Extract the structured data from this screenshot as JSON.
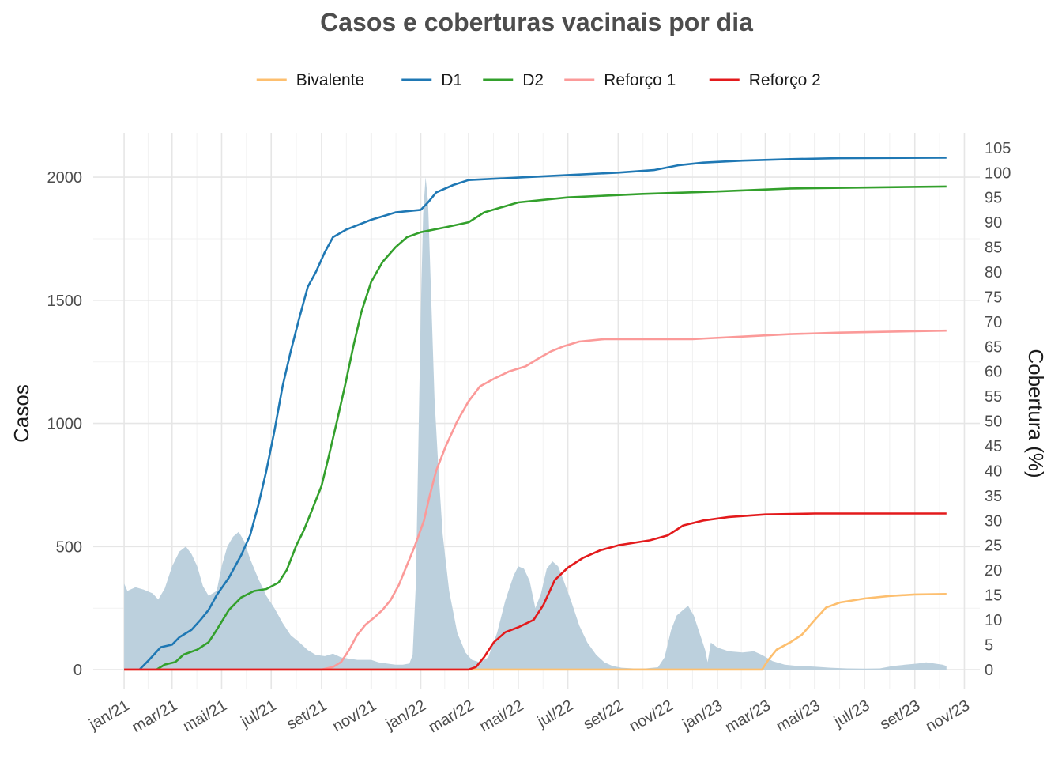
{
  "chart_data": {
    "type": "line",
    "title": "Casos e coberturas vacinais por dia",
    "ylabel": "Casos",
    "y2label": "Cobertura (%)",
    "legend_position": "top",
    "grid": true,
    "ylim": [
      -80,
      2180
    ],
    "y2lim": [
      -4,
      108
    ],
    "xlim": [
      "2020-11-24",
      "2023-11-20"
    ],
    "y_ticks": [
      0,
      500,
      1000,
      1500,
      2000
    ],
    "y2_ticks": [
      0,
      5,
      10,
      15,
      20,
      25,
      30,
      35,
      40,
      45,
      50,
      55,
      60,
      65,
      70,
      75,
      80,
      85,
      90,
      95,
      100,
      105
    ],
    "x_ticks": [
      {
        "date": "2021-01-01",
        "label": "jan/21"
      },
      {
        "date": "2021-03-01",
        "label": "mar/21"
      },
      {
        "date": "2021-05-01",
        "label": "mai/21"
      },
      {
        "date": "2021-07-01",
        "label": "jul/21"
      },
      {
        "date": "2021-09-01",
        "label": "set/21"
      },
      {
        "date": "2021-11-01",
        "label": "nov/21"
      },
      {
        "date": "2022-01-01",
        "label": "jan/22"
      },
      {
        "date": "2022-03-01",
        "label": "mar/22"
      },
      {
        "date": "2022-05-01",
        "label": "mai/22"
      },
      {
        "date": "2022-07-01",
        "label": "jul/22"
      },
      {
        "date": "2022-09-01",
        "label": "set/22"
      },
      {
        "date": "2022-11-01",
        "label": "nov/22"
      },
      {
        "date": "2023-01-01",
        "label": "jan/23"
      },
      {
        "date": "2023-03-01",
        "label": "mar/23"
      },
      {
        "date": "2023-05-01",
        "label": "mai/23"
      },
      {
        "date": "2023-07-01",
        "label": "jul/23"
      },
      {
        "date": "2023-09-01",
        "label": "set/23"
      },
      {
        "date": "2023-11-01",
        "label": "nov/23"
      }
    ],
    "cases": {
      "color": "#bcd0dd",
      "axis": "left",
      "points": [
        [
          "2021-01-01",
          350
        ],
        [
          "2021-01-05",
          320
        ],
        [
          "2021-01-15",
          335
        ],
        [
          "2021-01-25",
          325
        ],
        [
          "2021-02-05",
          310
        ],
        [
          "2021-02-12",
          285
        ],
        [
          "2021-02-20",
          330
        ],
        [
          "2021-03-01",
          420
        ],
        [
          "2021-03-10",
          480
        ],
        [
          "2021-03-18",
          500
        ],
        [
          "2021-03-25",
          470
        ],
        [
          "2021-04-01",
          420
        ],
        [
          "2021-04-08",
          340
        ],
        [
          "2021-04-15",
          300
        ],
        [
          "2021-04-25",
          320
        ],
        [
          "2021-05-01",
          420
        ],
        [
          "2021-05-08",
          500
        ],
        [
          "2021-05-15",
          540
        ],
        [
          "2021-05-22",
          560
        ],
        [
          "2021-05-29",
          520
        ],
        [
          "2021-06-05",
          450
        ],
        [
          "2021-06-15",
          370
        ],
        [
          "2021-06-25",
          300
        ],
        [
          "2021-07-05",
          250
        ],
        [
          "2021-07-15",
          190
        ],
        [
          "2021-07-25",
          140
        ],
        [
          "2021-08-05",
          110
        ],
        [
          "2021-08-15",
          80
        ],
        [
          "2021-08-25",
          60
        ],
        [
          "2021-09-05",
          55
        ],
        [
          "2021-09-15",
          65
        ],
        [
          "2021-09-25",
          50
        ],
        [
          "2021-10-05",
          45
        ],
        [
          "2021-10-15",
          40
        ],
        [
          "2021-11-01",
          40
        ],
        [
          "2021-11-10",
          30
        ],
        [
          "2021-11-20",
          25
        ],
        [
          "2021-12-01",
          20
        ],
        [
          "2021-12-10",
          20
        ],
        [
          "2021-12-18",
          25
        ],
        [
          "2021-12-22",
          60
        ],
        [
          "2021-12-26",
          350
        ],
        [
          "2021-12-29",
          900
        ],
        [
          "2022-01-01",
          1450
        ],
        [
          "2022-01-04",
          1850
        ],
        [
          "2022-01-07",
          2000
        ],
        [
          "2022-01-10",
          1900
        ],
        [
          "2022-01-14",
          1500
        ],
        [
          "2022-01-18",
          1100
        ],
        [
          "2022-01-23",
          800
        ],
        [
          "2022-01-28",
          550
        ],
        [
          "2022-02-05",
          320
        ],
        [
          "2022-02-15",
          150
        ],
        [
          "2022-02-25",
          70
        ],
        [
          "2022-03-05",
          40
        ],
        [
          "2022-03-15",
          30
        ],
        [
          "2022-03-25",
          50
        ],
        [
          "2022-04-05",
          150
        ],
        [
          "2022-04-15",
          280
        ],
        [
          "2022-04-25",
          380
        ],
        [
          "2022-05-01",
          420
        ],
        [
          "2022-05-08",
          410
        ],
        [
          "2022-05-15",
          360
        ],
        [
          "2022-05-22",
          250
        ],
        [
          "2022-05-29",
          310
        ],
        [
          "2022-06-05",
          410
        ],
        [
          "2022-06-12",
          440
        ],
        [
          "2022-06-19",
          420
        ],
        [
          "2022-06-26",
          360
        ],
        [
          "2022-07-05",
          280
        ],
        [
          "2022-07-15",
          180
        ],
        [
          "2022-07-25",
          110
        ],
        [
          "2022-08-05",
          60
        ],
        [
          "2022-08-15",
          30
        ],
        [
          "2022-08-25",
          15
        ],
        [
          "2022-09-05",
          8
        ],
        [
          "2022-09-20",
          5
        ],
        [
          "2022-10-05",
          5
        ],
        [
          "2022-10-20",
          10
        ],
        [
          "2022-10-28",
          50
        ],
        [
          "2022-11-05",
          160
        ],
        [
          "2022-11-12",
          220
        ],
        [
          "2022-11-19",
          240
        ],
        [
          "2022-11-26",
          260
        ],
        [
          "2022-12-03",
          220
        ],
        [
          "2022-12-10",
          150
        ],
        [
          "2022-12-17",
          80
        ],
        [
          "2022-12-20",
          30
        ],
        [
          "2022-12-24",
          110
        ],
        [
          "2023-01-01",
          90
        ],
        [
          "2023-01-15",
          75
        ],
        [
          "2023-02-01",
          70
        ],
        [
          "2023-02-15",
          75
        ],
        [
          "2023-02-25",
          60
        ],
        [
          "2023-03-10",
          35
        ],
        [
          "2023-03-25",
          20
        ],
        [
          "2023-04-10",
          15
        ],
        [
          "2023-05-01",
          12
        ],
        [
          "2023-05-20",
          8
        ],
        [
          "2023-06-10",
          5
        ],
        [
          "2023-07-01",
          4
        ],
        [
          "2023-07-20",
          5
        ],
        [
          "2023-08-05",
          15
        ],
        [
          "2023-08-20",
          20
        ],
        [
          "2023-09-05",
          25
        ],
        [
          "2023-09-15",
          30
        ],
        [
          "2023-09-25",
          25
        ],
        [
          "2023-10-05",
          20
        ],
        [
          "2023-10-10",
          15
        ]
      ]
    },
    "series": [
      {
        "name": "Bivalente",
        "color": "#fdbf6f",
        "axis": "right",
        "points": [
          [
            "2021-01-01",
            0
          ],
          [
            "2023-02-25",
            0
          ],
          [
            "2023-03-05",
            2
          ],
          [
            "2023-03-15",
            4
          ],
          [
            "2023-04-01",
            5.5
          ],
          [
            "2023-04-15",
            7
          ],
          [
            "2023-05-01",
            10
          ],
          [
            "2023-05-15",
            12.5
          ],
          [
            "2023-06-01",
            13.5
          ],
          [
            "2023-07-01",
            14.3
          ],
          [
            "2023-08-01",
            14.8
          ],
          [
            "2023-09-01",
            15.1
          ],
          [
            "2023-10-10",
            15.2
          ]
        ]
      },
      {
        "name": "D1",
        "color": "#1f78b4",
        "axis": "right",
        "points": [
          [
            "2021-01-20",
            0
          ],
          [
            "2021-02-01",
            2
          ],
          [
            "2021-02-15",
            4.5
          ],
          [
            "2021-03-01",
            5
          ],
          [
            "2021-03-10",
            6.5
          ],
          [
            "2021-03-25",
            8
          ],
          [
            "2021-04-05",
            10
          ],
          [
            "2021-04-15",
            12
          ],
          [
            "2021-04-25",
            15
          ],
          [
            "2021-05-10",
            18.5
          ],
          [
            "2021-05-25",
            23
          ],
          [
            "2021-06-05",
            27
          ],
          [
            "2021-06-15",
            33
          ],
          [
            "2021-06-25",
            40
          ],
          [
            "2021-07-05",
            48
          ],
          [
            "2021-07-15",
            57
          ],
          [
            "2021-07-25",
            64
          ],
          [
            "2021-08-05",
            71
          ],
          [
            "2021-08-15",
            77
          ],
          [
            "2021-08-25",
            80
          ],
          [
            "2021-09-05",
            84
          ],
          [
            "2021-09-15",
            87
          ],
          [
            "2021-10-01",
            88.5
          ],
          [
            "2021-11-01",
            90.5
          ],
          [
            "2021-12-01",
            92
          ],
          [
            "2022-01-01",
            92.5
          ],
          [
            "2022-01-10",
            94
          ],
          [
            "2022-01-20",
            96
          ],
          [
            "2022-02-10",
            97.5
          ],
          [
            "2022-03-01",
            98.5
          ],
          [
            "2022-05-01",
            99
          ],
          [
            "2022-07-01",
            99.5
          ],
          [
            "2022-09-01",
            100
          ],
          [
            "2022-10-15",
            100.5
          ],
          [
            "2022-11-15",
            101.5
          ],
          [
            "2022-12-15",
            102
          ],
          [
            "2023-02-01",
            102.4
          ],
          [
            "2023-04-01",
            102.7
          ],
          [
            "2023-06-01",
            102.9
          ],
          [
            "2023-10-10",
            103
          ]
        ]
      },
      {
        "name": "D2",
        "color": "#33a02c",
        "axis": "right",
        "points": [
          [
            "2021-02-10",
            0
          ],
          [
            "2021-02-20",
            1
          ],
          [
            "2021-03-05",
            1.5
          ],
          [
            "2021-03-15",
            3
          ],
          [
            "2021-04-01",
            4
          ],
          [
            "2021-04-15",
            5.5
          ],
          [
            "2021-04-25",
            8
          ],
          [
            "2021-05-10",
            12
          ],
          [
            "2021-05-25",
            14.5
          ],
          [
            "2021-06-10",
            15.8
          ],
          [
            "2021-06-25",
            16.2
          ],
          [
            "2021-07-10",
            17.5
          ],
          [
            "2021-07-20",
            20
          ],
          [
            "2021-08-01",
            25
          ],
          [
            "2021-08-10",
            28
          ],
          [
            "2021-08-20",
            32
          ],
          [
            "2021-09-01",
            37
          ],
          [
            "2021-09-10",
            43
          ],
          [
            "2021-09-20",
            50
          ],
          [
            "2021-10-01",
            58
          ],
          [
            "2021-10-10",
            65
          ],
          [
            "2021-10-20",
            72
          ],
          [
            "2021-11-01",
            78
          ],
          [
            "2021-11-15",
            82
          ],
          [
            "2021-12-01",
            85
          ],
          [
            "2021-12-15,",
            87
          ],
          [
            "2022-01-01",
            88
          ],
          [
            "2022-02-01",
            89
          ],
          [
            "2022-03-01",
            90
          ],
          [
            "2022-03-20",
            92
          ],
          [
            "2022-04-10",
            93
          ],
          [
            "2022-05-01",
            94
          ],
          [
            "2022-07-01",
            95
          ],
          [
            "2022-10-01",
            95.7
          ],
          [
            "2023-01-01",
            96.2
          ],
          [
            "2023-04-01",
            96.8
          ],
          [
            "2023-10-10",
            97.2
          ]
        ]
      },
      {
        "name": "Reforço 1",
        "color": "#fb9a99",
        "axis": "right",
        "points": [
          [
            "2021-01-01",
            0
          ],
          [
            "2021-09-01",
            0
          ],
          [
            "2021-09-15",
            0.5
          ],
          [
            "2021-09-25",
            1.5
          ],
          [
            "2021-10-05",
            4
          ],
          [
            "2021-10-15",
            7
          ],
          [
            "2021-10-25",
            9
          ],
          [
            "2021-11-05",
            10.5
          ],
          [
            "2021-11-15",
            12
          ],
          [
            "2021-11-25",
            14
          ],
          [
            "2021-12-05",
            17
          ],
          [
            "2021-12-15",
            21
          ],
          [
            "2021-12-25",
            25
          ],
          [
            "2022-01-05",
            30
          ],
          [
            "2022-01-12",
            35
          ],
          [
            "2022-01-20",
            40
          ],
          [
            "2022-02-01",
            45
          ],
          [
            "2022-02-15",
            50
          ],
          [
            "2022-03-01",
            54
          ],
          [
            "2022-03-15",
            57
          ],
          [
            "2022-04-01",
            58.5
          ],
          [
            "2022-04-20",
            60
          ],
          [
            "2022-05-10",
            61
          ],
          [
            "2022-05-25",
            62.5
          ],
          [
            "2022-06-10",
            64
          ],
          [
            "2022-06-25",
            65
          ],
          [
            "2022-07-15",
            66
          ],
          [
            "2022-08-15",
            66.5
          ],
          [
            "2022-12-01",
            66.5
          ],
          [
            "2023-02-01",
            67
          ],
          [
            "2023-04-01",
            67.5
          ],
          [
            "2023-06-01",
            67.8
          ],
          [
            "2023-10-10",
            68.2
          ]
        ]
      },
      {
        "name": "Reforço 2",
        "color": "#e31a1c",
        "axis": "right",
        "points": [
          [
            "2021-01-01",
            0
          ],
          [
            "2022-03-01",
            0
          ],
          [
            "2022-03-10",
            0.5
          ],
          [
            "2022-03-20",
            2.5
          ],
          [
            "2022-04-01",
            5.5
          ],
          [
            "2022-04-15",
            7.5
          ],
          [
            "2022-05-01",
            8.5
          ],
          [
            "2022-05-20",
            10
          ],
          [
            "2022-06-01",
            13
          ],
          [
            "2022-06-15",
            18
          ],
          [
            "2022-07-01",
            20.5
          ],
          [
            "2022-07-20",
            22.5
          ],
          [
            "2022-08-10",
            24
          ],
          [
            "2022-09-01",
            25
          ],
          [
            "2022-09-20",
            25.5
          ],
          [
            "2022-10-10",
            26
          ],
          [
            "2022-11-01",
            27
          ],
          [
            "2022-11-20",
            29
          ],
          [
            "2022-12-15",
            30
          ],
          [
            "2023-01-15",
            30.7
          ],
          [
            "2023-03-01",
            31.2
          ],
          [
            "2023-05-01",
            31.4
          ],
          [
            "2023-10-10",
            31.4
          ]
        ]
      }
    ]
  }
}
